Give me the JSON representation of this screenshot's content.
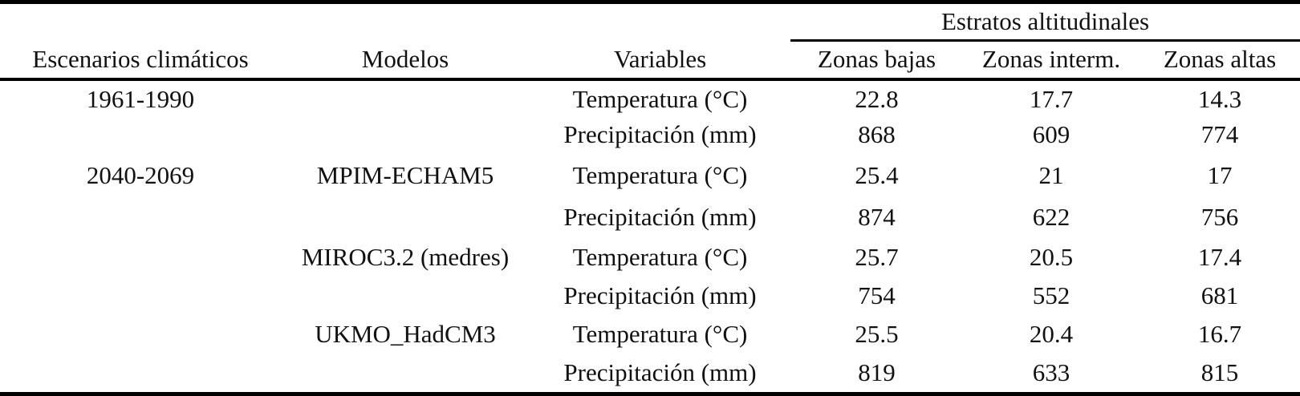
{
  "table": {
    "title_spanner": "Estratos altitudinales",
    "headers": {
      "escenarios": "Escenarios climáticos",
      "modelos": "Modelos",
      "variables": "Variables",
      "zonas_bajas": "Zonas bajas",
      "zonas_interm": "Zonas interm.",
      "zonas_altas": "Zonas altas"
    },
    "rows": [
      {
        "escenario": "1961-1990",
        "modelo": "",
        "variable": "Temperatura (°C)",
        "zonas_bajas": "22.8",
        "zonas_interm": "17.7",
        "zonas_altas": "14.3"
      },
      {
        "escenario": "",
        "modelo": "",
        "variable": "Precipitación (mm)",
        "zonas_bajas": "868",
        "zonas_interm": "609",
        "zonas_altas": "774"
      },
      {
        "escenario": "2040-2069",
        "modelo": "MPIM-ECHAM5",
        "variable": "Temperatura (°C)",
        "zonas_bajas": "25.4",
        "zonas_interm": "21",
        "zonas_altas": "17"
      },
      {
        "escenario": "",
        "modelo": "",
        "variable": "Precipitación (mm)",
        "zonas_bajas": "874",
        "zonas_interm": "622",
        "zonas_altas": "756"
      },
      {
        "escenario": "",
        "modelo": "MIROC3.2 (medres)",
        "variable": "Temperatura (°C)",
        "zonas_bajas": "25.7",
        "zonas_interm": "20.5",
        "zonas_altas": "17.4"
      },
      {
        "escenario": "",
        "modelo": "",
        "variable": "Precipitación (mm)",
        "zonas_bajas": "754",
        "zonas_interm": "552",
        "zonas_altas": "681"
      },
      {
        "escenario": "",
        "modelo": "UKMO_HadCM3",
        "variable": "Temperatura (°C)",
        "zonas_bajas": "25.5",
        "zonas_interm": "20.4",
        "zonas_altas": "16.7"
      },
      {
        "escenario": "",
        "modelo": "",
        "variable": "Precipitación (mm)",
        "zonas_bajas": "819",
        "zonas_interm": "633",
        "zonas_altas": "815"
      }
    ],
    "colors": {
      "rule": "#000000",
      "text": "#111111",
      "background": "#ffffff"
    }
  }
}
